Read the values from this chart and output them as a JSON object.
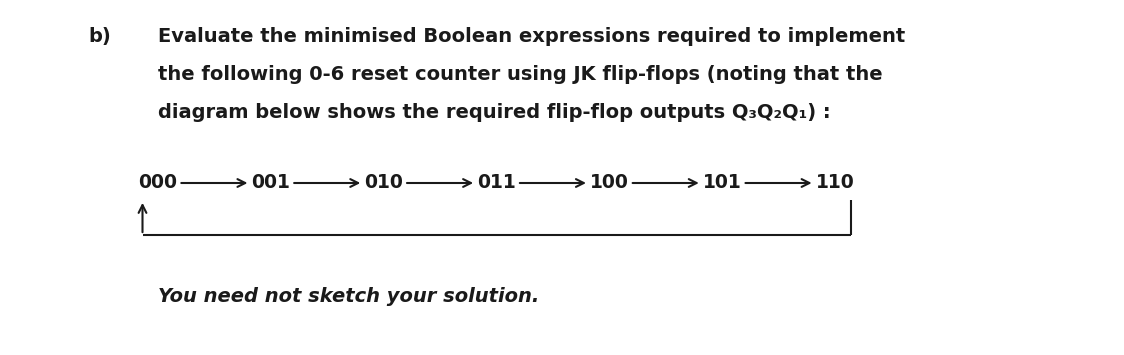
{
  "bg_color": "#ffffff",
  "label_b": "b)",
  "line1": "Evaluate the minimised Boolean expressions required to implement",
  "line2": "the following 0-6 reset counter using JK flip-flops (noting that the",
  "line3": "diagram below shows the required flip-flop outputs Q₃Q₂Q₁) :",
  "states": [
    "000",
    "001",
    "010",
    "011",
    "100",
    "101",
    "110"
  ],
  "italic_note": "You need not sketch your solution.",
  "text_color": "#1a1a1a",
  "font_size_main": 14.0,
  "font_size_state": 13.5,
  "font_size_italic": 14.0,
  "fig_width": 11.24,
  "fig_height": 3.55,
  "dpi": 100
}
